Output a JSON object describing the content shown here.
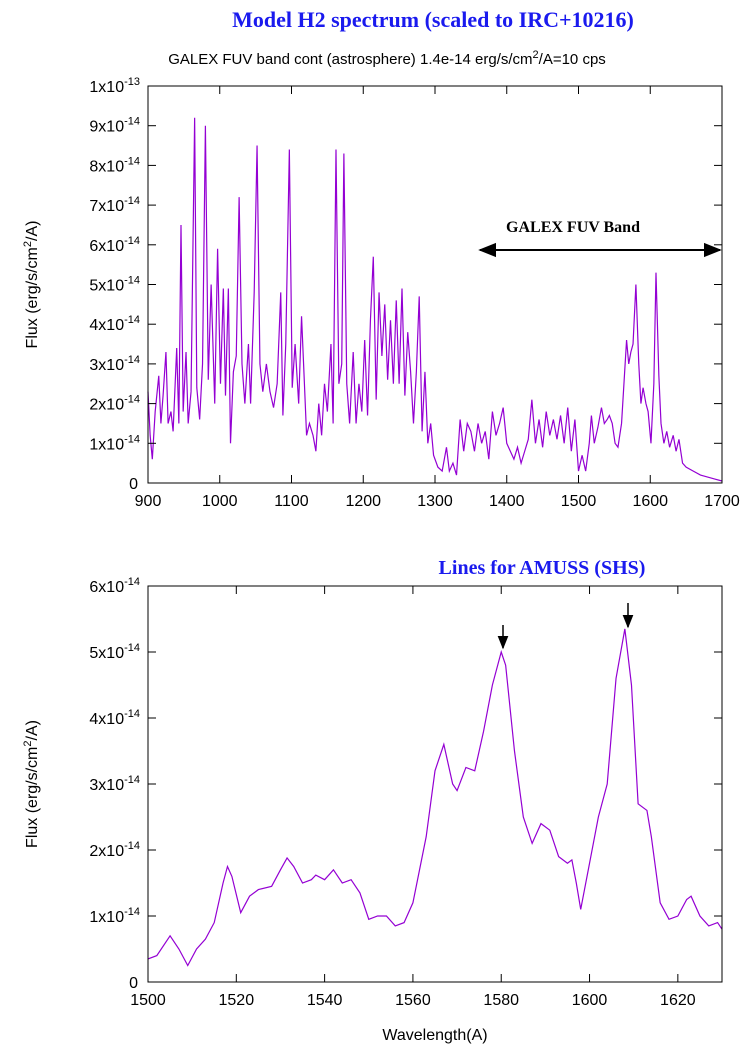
{
  "chart_data": [
    {
      "type": "line",
      "title": "Model H2 spectrum (scaled to IRC+10216)",
      "subtitle": [
        "GALEX FUV band cont (astrosphere) 1.4e-14 erg/s/cm",
        "2",
        "/A=10 cps"
      ],
      "ylabel": [
        "Flux (erg/s/cm",
        "2",
        "/A)"
      ],
      "annotation": "GALEX FUV Band",
      "xlim": [
        900,
        1700
      ],
      "xticks": [
        900,
        1000,
        1100,
        1200,
        1300,
        1400,
        1500,
        1600,
        1700
      ],
      "ylim": [
        0,
        1e-13
      ],
      "yticks": [
        0,
        {
          "value": 1e-14,
          "label": "1x10",
          "exponent": "-14"
        },
        {
          "value": 2e-14,
          "label": "2x10",
          "exponent": "-14"
        },
        {
          "value": 3e-14,
          "label": "3x10",
          "exponent": "-14"
        },
        {
          "value": 4e-14,
          "label": "4x10",
          "exponent": "-14"
        },
        {
          "value": 5e-14,
          "label": "5x10",
          "exponent": "-14"
        },
        {
          "value": 6e-14,
          "label": "6x10",
          "exponent": "-14"
        },
        {
          "value": 7e-14,
          "label": "7x10",
          "exponent": "-14"
        },
        {
          "value": 8e-14,
          "label": "8x10",
          "exponent": "-14"
        },
        {
          "value": 9e-14,
          "label": "9x10",
          "exponent": "-14"
        },
        {
          "value": 1e-13,
          "label": "1x10",
          "exponent": "-13"
        }
      ],
      "color": "#9400d3",
      "x": [
        900,
        903,
        906,
        910,
        915,
        918,
        921,
        925,
        928,
        932,
        935,
        940,
        943,
        946,
        949,
        953,
        956,
        960,
        965,
        968,
        972,
        976,
        980,
        984,
        988,
        993,
        997,
        1001,
        1005,
        1008,
        1012,
        1015,
        1019,
        1023,
        1027,
        1031,
        1035,
        1040,
        1043,
        1048,
        1052,
        1056,
        1060,
        1065,
        1070,
        1075,
        1080,
        1085,
        1088,
        1092,
        1097,
        1101,
        1105,
        1110,
        1114,
        1118,
        1121,
        1125,
        1130,
        1134,
        1138,
        1142,
        1146,
        1150,
        1155,
        1158,
        1162,
        1166,
        1170,
        1173,
        1177,
        1181,
        1186,
        1190,
        1194,
        1198,
        1202,
        1206,
        1210,
        1214,
        1218,
        1222,
        1226,
        1230,
        1234,
        1238,
        1242,
        1246,
        1250,
        1254,
        1258,
        1262,
        1266,
        1270,
        1274,
        1278,
        1282,
        1286,
        1290,
        1294,
        1298,
        1304,
        1310,
        1316,
        1320,
        1325,
        1330,
        1335,
        1340,
        1345,
        1350,
        1355,
        1360,
        1365,
        1370,
        1375,
        1380,
        1385,
        1390,
        1395,
        1400,
        1405,
        1410,
        1415,
        1420,
        1425,
        1430,
        1435,
        1440,
        1445,
        1450,
        1455,
        1460,
        1465,
        1470,
        1475,
        1480,
        1485,
        1490,
        1495,
        1500,
        1505,
        1510,
        1515,
        1518,
        1522,
        1527,
        1532,
        1536,
        1540,
        1543,
        1547,
        1551,
        1555,
        1560,
        1567,
        1570,
        1573,
        1576,
        1580,
        1584,
        1587,
        1590,
        1594,
        1597,
        1601,
        1605,
        1608,
        1612,
        1615,
        1619,
        1623,
        1627,
        1632,
        1636,
        1640,
        1645,
        1650,
        1660,
        1670,
        1680,
        1690,
        1700
      ],
      "values": [
        2.3e-14,
        1.2e-14,
        6e-15,
        1.8e-14,
        2.7e-14,
        1.5e-14,
        2.2e-14,
        3.3e-14,
        1.5e-14,
        1.8e-14,
        1.3e-14,
        3.4e-14,
        1.5e-14,
        6.5e-14,
        1.8e-14,
        3.3e-14,
        1.5e-14,
        2.3e-14,
        9.2e-14,
        2.4e-14,
        1.6e-14,
        3e-14,
        9e-14,
        2.6e-14,
        5e-14,
        2e-14,
        5.9e-14,
        2.5e-14,
        4.9e-14,
        2.2e-14,
        4.9e-14,
        1e-14,
        2.8e-14,
        3.2e-14,
        7.2e-14,
        3e-14,
        2e-14,
        3.5e-14,
        2e-14,
        4.8e-14,
        8.5e-14,
        3e-14,
        2.3e-14,
        3e-14,
        2.3e-14,
        1.9e-14,
        2.5e-14,
        4.8e-14,
        1.7e-14,
        3.5e-14,
        8.4e-14,
        2.4e-14,
        3.5e-14,
        2e-14,
        4.2e-14,
        2.5e-14,
        1.2e-14,
        1.5e-14,
        1.2e-14,
        8e-15,
        2e-14,
        1.2e-14,
        2.5e-14,
        1.8e-14,
        3.5e-14,
        1.5e-14,
        8.4e-14,
        2.5e-14,
        3e-14,
        8.3e-14,
        2.5e-14,
        1.5e-14,
        3.3e-14,
        1.5e-14,
        2.5e-14,
        1.8e-14,
        3.6e-14,
        1.7e-14,
        4.1e-14,
        5.7e-14,
        2.1e-14,
        4.8e-14,
        3.2e-14,
        4.5e-14,
        2.6e-14,
        4.1e-14,
        2.5e-14,
        4.6e-14,
        2.5e-14,
        4.9e-14,
        2.2e-14,
        3.8e-14,
        2.8e-14,
        1.5e-14,
        2.8e-14,
        4.7e-14,
        1.3e-14,
        2.8e-14,
        1e-14,
        1.5e-14,
        7e-15,
        4e-15,
        3e-15,
        9e-15,
        3e-15,
        5e-15,
        2e-15,
        1.6e-14,
        8e-15,
        1.5e-14,
        1.3e-14,
        8e-15,
        1.5e-14,
        1e-14,
        1.3e-14,
        6e-15,
        1.8e-14,
        1.2e-14,
        1.5e-14,
        1.9e-14,
        1e-14,
        8e-15,
        6e-15,
        9e-15,
        5e-15,
        8e-15,
        1.1e-14,
        2.1e-14,
        1e-14,
        1.6e-14,
        9e-15,
        1.8e-14,
        1.2e-14,
        1.6e-14,
        1.1e-14,
        1.7e-14,
        1e-14,
        1.9e-14,
        8e-15,
        1.6e-14,
        3e-15,
        7e-15,
        3e-15,
        1e-14,
        1.7e-14,
        1e-14,
        1.4e-14,
        1.9e-14,
        1.5e-14,
        1.6e-14,
        1.7e-14,
        1.5e-14,
        1e-14,
        9e-15,
        1.5e-14,
        3.6e-14,
        3e-14,
        3.3e-14,
        3.5e-14,
        5e-14,
        3e-14,
        2e-14,
        2.4e-14,
        2e-14,
        1.8e-14,
        1e-14,
        2.5e-14,
        5.3e-14,
        2.7e-14,
        1.5e-14,
        1e-14,
        1.3e-14,
        9e-15,
        1.2e-14,
        8e-15,
        1.1e-14,
        5e-15,
        4e-15,
        3e-15,
        2e-15,
        1.5e-15,
        1e-15,
        5e-16
      ]
    },
    {
      "type": "line",
      "title": "Lines for AMUSS (SHS)",
      "ylabel": [
        "Flux (erg/s/cm",
        "2",
        "/A)"
      ],
      "xlabel": "Wavelength(A)",
      "xlim": [
        1500,
        1630
      ],
      "xticks": [
        1500,
        1520,
        1540,
        1560,
        1580,
        1600,
        1620
      ],
      "ylim": [
        0,
        6e-14
      ],
      "yticks": [
        0,
        {
          "value": 1e-14,
          "label": "1x10",
          "exponent": "-14"
        },
        {
          "value": 2e-14,
          "label": "2x10",
          "exponent": "-14"
        },
        {
          "value": 3e-14,
          "label": "3x10",
          "exponent": "-14"
        },
        {
          "value": 4e-14,
          "label": "4x10",
          "exponent": "-14"
        },
        {
          "value": 5e-14,
          "label": "5x10",
          "exponent": "-14"
        },
        {
          "value": 6e-14,
          "label": "6x10",
          "exponent": "-14"
        }
      ],
      "color": "#9400d3",
      "x": [
        1500,
        1502,
        1505,
        1507,
        1509,
        1511,
        1513,
        1515,
        1517,
        1518,
        1519,
        1521,
        1523,
        1525,
        1528,
        1530,
        1531.5,
        1533,
        1535,
        1537,
        1538,
        1540,
        1542,
        1544,
        1546,
        1548,
        1550,
        1552,
        1554,
        1556,
        1558,
        1560,
        1563,
        1565,
        1567,
        1569,
        1570,
        1572,
        1574,
        1576,
        1578,
        1580,
        1581,
        1583,
        1585,
        1587,
        1589,
        1591,
        1593,
        1595,
        1596,
        1597,
        1598,
        1600,
        1602,
        1604,
        1606,
        1608,
        1609.5,
        1611,
        1613,
        1614,
        1616,
        1618,
        1620,
        1622,
        1623,
        1625,
        1627,
        1629,
        1630
      ],
      "values": [
        3.5e-15,
        4e-15,
        7e-15,
        5e-15,
        2.5e-15,
        5e-15,
        6.5e-15,
        9e-15,
        1.5e-14,
        1.75e-14,
        1.6e-14,
        1.05e-14,
        1.3e-14,
        1.4e-14,
        1.45e-14,
        1.7e-14,
        1.88e-14,
        1.75e-14,
        1.5e-14,
        1.55e-14,
        1.62e-14,
        1.55e-14,
        1.7e-14,
        1.5e-14,
        1.55e-14,
        1.35e-14,
        9.5e-15,
        1e-14,
        1e-14,
        8.5e-15,
        9e-15,
        1.2e-14,
        2.2e-14,
        3.2e-14,
        3.6e-14,
        3e-14,
        2.9e-14,
        3.25e-14,
        3.2e-14,
        3.8e-14,
        4.5e-14,
        5e-14,
        4.8e-14,
        3.5e-14,
        2.5e-14,
        2.1e-14,
        2.4e-14,
        2.3e-14,
        1.9e-14,
        1.8e-14,
        1.85e-14,
        1.5e-14,
        1.1e-14,
        1.8e-14,
        2.5e-14,
        3e-14,
        4.6e-14,
        5.35e-14,
        4.5e-14,
        2.7e-14,
        2.6e-14,
        2.2e-14,
        1.2e-14,
        9.5e-15,
        1e-14,
        1.25e-14,
        1.3e-14,
        1e-14,
        8.5e-15,
        9e-15,
        8e-15
      ]
    }
  ]
}
